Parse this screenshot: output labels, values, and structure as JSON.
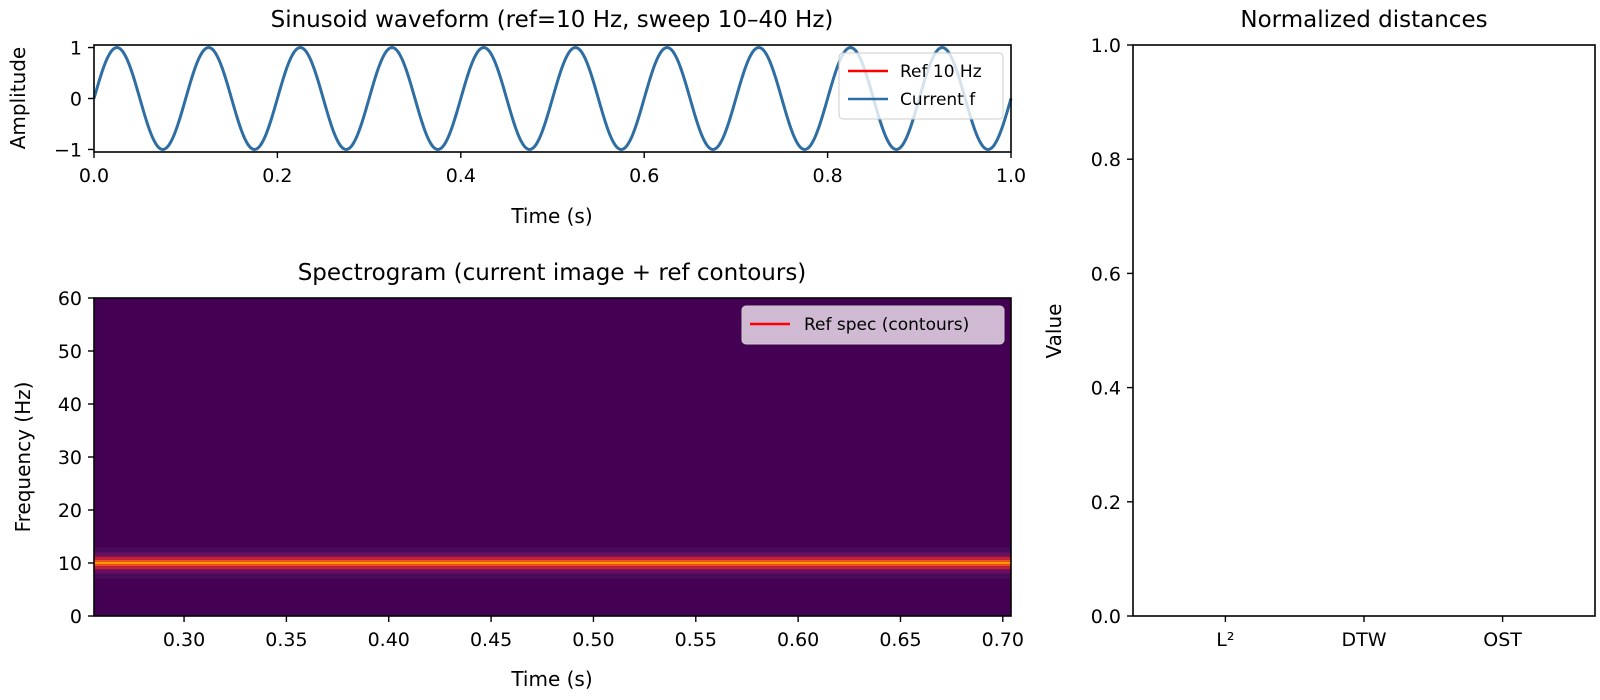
{
  "chart_data": [
    {
      "id": "waveform",
      "type": "line",
      "title": "Sinusoid waveform (ref=10 Hz, sweep 10–40 Hz)",
      "xlabel": "Time (s)",
      "ylabel": "Amplitude",
      "xlim": [
        0.0,
        1.0
      ],
      "ylim": [
        -1.05,
        1.05
      ],
      "xticks": [
        0.0,
        0.2,
        0.4,
        0.6,
        0.8,
        1.0
      ],
      "xtick_labels": [
        "0.0",
        "0.2",
        "0.4",
        "0.6",
        "0.8",
        "1.0"
      ],
      "yticks": [
        -1,
        0,
        1
      ],
      "ytick_labels": [
        "−1",
        "0",
        "1"
      ],
      "grid": false,
      "legend_position": "top-right",
      "series": [
        {
          "name": "Ref 10 Hz",
          "color": "#ff0000",
          "frequency_hz": 10,
          "amplitude": 1,
          "visible_under": true
        },
        {
          "name": "Current f",
          "color": "#2f6ea3",
          "frequency_hz": 10,
          "amplitude": 1
        }
      ]
    },
    {
      "id": "spectrogram",
      "type": "heatmap",
      "title": "Spectrogram (current image + ref contours)",
      "xlabel": "Time (s)",
      "ylabel": "Frequency (Hz)",
      "xlim": [
        0.256,
        0.704
      ],
      "ylim": [
        0,
        60
      ],
      "xticks": [
        0.3,
        0.35,
        0.4,
        0.45,
        0.5,
        0.55,
        0.6,
        0.65,
        0.7
      ],
      "xtick_labels": [
        "0.30",
        "0.35",
        "0.40",
        "0.45",
        "0.50",
        "0.55",
        "0.60",
        "0.65",
        "0.70"
      ],
      "yticks": [
        0,
        10,
        20,
        30,
        40,
        50,
        60
      ],
      "ytick_labels": [
        "0",
        "10",
        "20",
        "30",
        "40",
        "50",
        "60"
      ],
      "colormap": "inferno-like",
      "background_color": "#440154",
      "bands": [
        {
          "from_hz": 12.0,
          "to_hz": 13.0,
          "color": "#4a0a5a"
        },
        {
          "from_hz": 11.2,
          "to_hz": 12.0,
          "color": "#6a0f5e"
        },
        {
          "from_hz": 10.6,
          "to_hz": 11.2,
          "color": "#c2203a"
        },
        {
          "from_hz": 10.2,
          "to_hz": 10.6,
          "color": "#f0501e"
        },
        {
          "from_hz": 9.8,
          "to_hz": 10.2,
          "color": "#f5f200"
        },
        {
          "from_hz": 9.4,
          "to_hz": 9.8,
          "color": "#f0501e"
        },
        {
          "from_hz": 8.8,
          "to_hz": 9.4,
          "color": "#c2203a"
        },
        {
          "from_hz": 8.0,
          "to_hz": 8.8,
          "color": "#6a0f5e"
        },
        {
          "from_hz": 7.0,
          "to_hz": 8.0,
          "color": "#4a0a5a"
        }
      ],
      "ref_contours": {
        "name": "Ref spec (contours)",
        "color": "#ff0000",
        "frequency_hz": 10
      },
      "legend_position": "top-right"
    },
    {
      "id": "distances",
      "type": "bar",
      "title": "Normalized distances",
      "xlabel": "",
      "ylabel": "Value",
      "categories": [
        "L²",
        "DTW",
        "OST"
      ],
      "values": [
        0,
        0,
        0
      ],
      "ylim": [
        0.0,
        1.0
      ],
      "yticks": [
        0.0,
        0.2,
        0.4,
        0.6,
        0.8,
        1.0
      ],
      "ytick_labels": [
        "0.0",
        "0.2",
        "0.4",
        "0.6",
        "0.8",
        "1.0"
      ],
      "grid": false
    }
  ]
}
